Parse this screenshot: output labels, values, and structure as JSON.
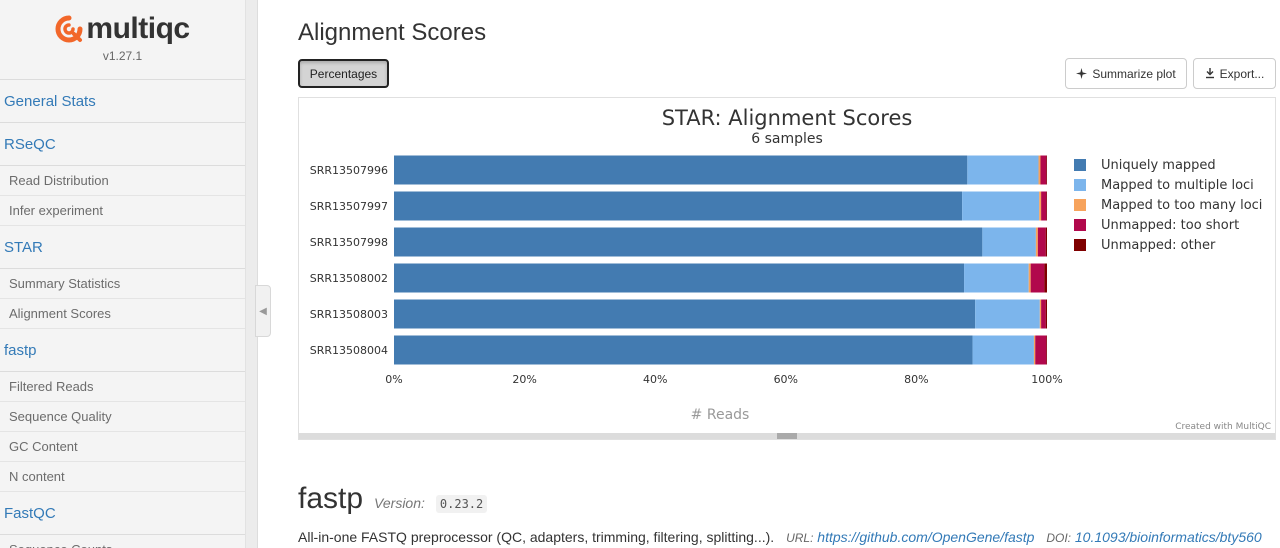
{
  "logo": {
    "name": "multiqc",
    "version": "v1.27.1"
  },
  "sidebar": {
    "items": [
      {
        "label": "General Stats",
        "type": "section"
      },
      {
        "label": "RSeQC",
        "type": "section"
      },
      {
        "label": "Read Distribution",
        "type": "sub"
      },
      {
        "label": "Infer experiment",
        "type": "sub"
      },
      {
        "label": "STAR",
        "type": "section"
      },
      {
        "label": "Summary Statistics",
        "type": "sub"
      },
      {
        "label": "Alignment Scores",
        "type": "sub"
      },
      {
        "label": "fastp",
        "type": "section"
      },
      {
        "label": "Filtered Reads",
        "type": "sub"
      },
      {
        "label": "Sequence Quality",
        "type": "sub"
      },
      {
        "label": "GC Content",
        "type": "sub"
      },
      {
        "label": "N content",
        "type": "sub"
      },
      {
        "label": "FastQC",
        "type": "section"
      },
      {
        "label": "Sequence Counts",
        "type": "sub"
      }
    ]
  },
  "section": {
    "title": "Alignment Scores",
    "percentages_label": "Percentages",
    "summarize_label": "Summarize plot",
    "export_label": "Export..."
  },
  "chart_data": {
    "type": "bar",
    "orientation": "horizontal",
    "stacked": true,
    "title": "STAR: Alignment Scores",
    "subtitle": "6 samples",
    "xlabel": "# Reads",
    "xlim": [
      0,
      100
    ],
    "x_ticks": [
      "0%",
      "20%",
      "40%",
      "60%",
      "80%",
      "100%"
    ],
    "categories": [
      "SRR13507996",
      "SRR13507997",
      "SRR13507998",
      "SRR13508002",
      "SRR13508003",
      "SRR13508004"
    ],
    "series": [
      {
        "name": "Uniquely mapped",
        "color": "#437bb1",
        "values": [
          87.8,
          87.0,
          90.1,
          87.3,
          89.0,
          88.6
        ]
      },
      {
        "name": "Mapped to multiple loci",
        "color": "#7cb5ec",
        "values": [
          10.9,
          11.8,
          8.2,
          9.9,
          9.9,
          9.4
        ]
      },
      {
        "name": "Mapped to too many loci",
        "color": "#f7a35c",
        "values": [
          0.3,
          0.3,
          0.3,
          0.3,
          0.2,
          0.2
        ]
      },
      {
        "name": "Unmapped: too short",
        "color": "#b1084c",
        "values": [
          0.9,
          0.8,
          1.2,
          2.1,
          0.7,
          1.7
        ]
      },
      {
        "name": "Unmapped: other",
        "color": "#7f0000",
        "values": [
          0.1,
          0.1,
          0.2,
          0.4,
          0.2,
          0.1
        ]
      }
    ],
    "legend_position": "right",
    "credit": "Created with MultiQC"
  },
  "fastp": {
    "title": "fastp",
    "version_label": "Version:",
    "version": "0.23.2",
    "description": "All-in-one FASTQ preprocessor (QC, adapters, trimming, filtering, splitting...).",
    "url_label": "URL:",
    "url": "https://github.com/OpenGene/fastp",
    "doi_label": "DOI:",
    "doi": "10.1093/bioinformatics/bty560"
  }
}
